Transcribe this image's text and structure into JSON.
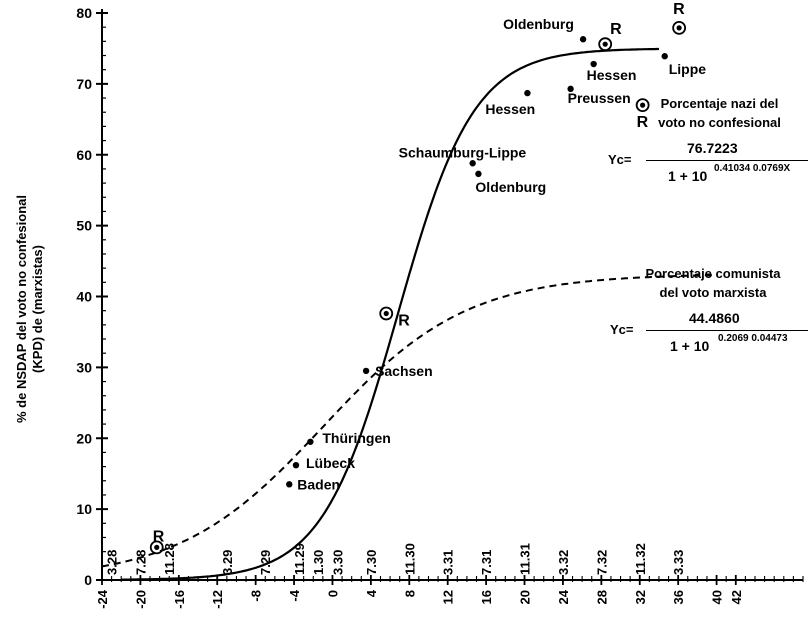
{
  "y_axis_title": [
    "% de NSDAP del voto no confesional",
    "(KPD) de (marxistas)"
  ],
  "equations": {
    "nazi": {
      "heading": [
        "Porcentaje nazi del",
        "voto no confesional"
      ],
      "lhs": "Yc=",
      "numerator": "76.7223",
      "denominator_base": "1 + 10",
      "exponent": "0.41034 0.0769X"
    },
    "communist": {
      "heading": [
        "Porcentaje comunista",
        "del voto marxista"
      ],
      "lhs": "Yc=",
      "numerator": "44.4860",
      "denominator_base": "1 + 10",
      "exponent": "0.2069 0.04473"
    }
  },
  "chart_data": {
    "type": "scatter",
    "x_ticks": [
      "-24",
      "-20",
      "-16",
      "-12",
      "-8",
      "-4",
      "0",
      "4",
      "8",
      "12",
      "16",
      "20",
      "24",
      "28",
      "32",
      "36",
      "40",
      "42"
    ],
    "y_ticks": [
      "0",
      "10",
      "20",
      "30",
      "40",
      "50",
      "60",
      "70",
      "80"
    ],
    "xlim": [
      -24,
      49
    ],
    "ylim": [
      0,
      80
    ],
    "grid": false,
    "date_labels": [
      {
        "label": "3.28",
        "x": -23
      },
      {
        "label": "7.28",
        "x": -20
      },
      {
        "label": "11.28",
        "x": -17
      },
      {
        "label": "3.29",
        "x": -11
      },
      {
        "label": "7.29",
        "x": -7
      },
      {
        "label": "11.29",
        "x": -3.5
      },
      {
        "label": "1.30",
        "x": -1.5
      },
      {
        "label": "3.30",
        "x": 0.5
      },
      {
        "label": "7.30",
        "x": 4
      },
      {
        "label": "11.30",
        "x": 8
      },
      {
        "label": "3.31",
        "x": 12
      },
      {
        "label": "7.31",
        "x": 16
      },
      {
        "label": "11.31",
        "x": 20
      },
      {
        "label": "3.32",
        "x": 24
      },
      {
        "label": "7.32",
        "x": 28
      },
      {
        "label": "11.32",
        "x": 32
      },
      {
        "label": "3.33",
        "x": 36
      }
    ],
    "points": [
      {
        "label": "Baden",
        "x": -4.5,
        "y": 13.5,
        "type": "dot"
      },
      {
        "label": "Lübeck",
        "x": -3.8,
        "y": 16.2,
        "type": "dot"
      },
      {
        "label": "Thüringen",
        "x": -2.3,
        "y": 19.5,
        "type": "dot"
      },
      {
        "label": "Sachsen",
        "x": 3.5,
        "y": 29.5,
        "type": "dot"
      },
      {
        "label": "Schaumburg-Lippe",
        "x": 14.6,
        "y": 58.8,
        "type": "dot"
      },
      {
        "label": "Oldenburg",
        "x": 15.2,
        "y": 57.3,
        "type": "dot"
      },
      {
        "label": "Hessen",
        "x": 20.3,
        "y": 68.7,
        "type": "dot"
      },
      {
        "label": "Preussen",
        "x": 24.8,
        "y": 69.3,
        "type": "dot"
      },
      {
        "label": "Oldenburg",
        "x": 26.1,
        "y": 76.3,
        "type": "dot"
      },
      {
        "label": "Hessen",
        "x": 27.2,
        "y": 72.8,
        "type": "dot"
      },
      {
        "label": "Lippe",
        "x": 34.6,
        "y": 73.9,
        "type": "dot"
      },
      {
        "label": "R",
        "x": -18.3,
        "y": 4.6,
        "type": "ring"
      },
      {
        "label": "R",
        "x": 5.6,
        "y": 37.6,
        "type": "ring"
      },
      {
        "label": "R",
        "x": 28.4,
        "y": 75.6,
        "type": "ring"
      },
      {
        "label": "R",
        "x": 32.3,
        "y": 67.0,
        "type": "ring"
      },
      {
        "label": "R",
        "x": 36.1,
        "y": 77.9,
        "type": "ring"
      }
    ],
    "series": [
      {
        "line_style": "solid",
        "curve": "logistic",
        "asymptote": 76.7223,
        "a": 0.41034,
        "b": 0.0769
      },
      {
        "line_style": "dashed",
        "curve": "logistic",
        "asymptote": 44.486,
        "a": 0.2069,
        "b": 0.04473
      }
    ]
  }
}
